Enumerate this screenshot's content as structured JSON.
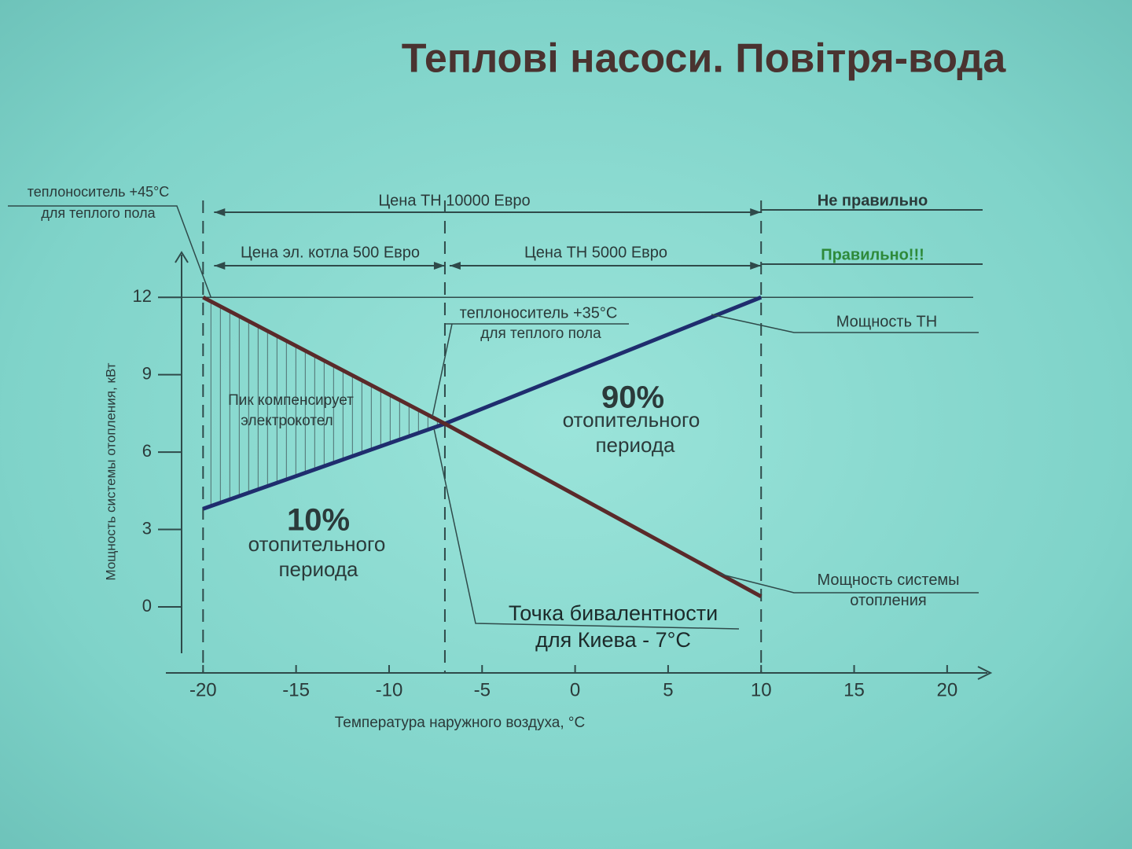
{
  "chart_data": {
    "type": "line",
    "title": "Теплові насоси. Повітря-вода",
    "x_label": "Температура наружного воздуха, °C",
    "y_label": "Мощность системы отопления, кВт",
    "xlim": [
      -22,
      22.5
    ],
    "xticks": [
      -20,
      -15,
      -10,
      -5,
      0,
      5,
      10,
      15,
      20
    ],
    "ylim": [
      -1.8,
      13.5
    ],
    "yticks": [
      0,
      3,
      6,
      9,
      12
    ],
    "reference_x": [
      -20,
      -7,
      10
    ],
    "reference_y": 12,
    "series": [
      {
        "name": "Мощность ТН",
        "color": "#1f2d6e",
        "x": [
          -20,
          -7,
          10
        ],
        "values": [
          3.8,
          7.1,
          12
        ]
      },
      {
        "name": "Мощность системы отопления",
        "color": "#5a2a2a",
        "x": [
          -20,
          -7,
          10
        ],
        "values": [
          12,
          7.1,
          0.4
        ]
      }
    ],
    "annotations": [
      "теплоноситель +45°C",
      "для теплого пола",
      "Цена ТН 10000 Евро",
      "Не правильно",
      "Цена эл. котла 500 Евро",
      "Цена ТН 5000 Евро",
      "Правильно!!!",
      "теплоноситель +35°C",
      "для теплого пола",
      "Пик компенсирует",
      "электрокотел",
      "90%",
      "отопительного",
      "периода",
      "10%",
      "отопительного",
      "периода",
      "Точка бивалентности",
      "для Киева - 7°C"
    ]
  }
}
